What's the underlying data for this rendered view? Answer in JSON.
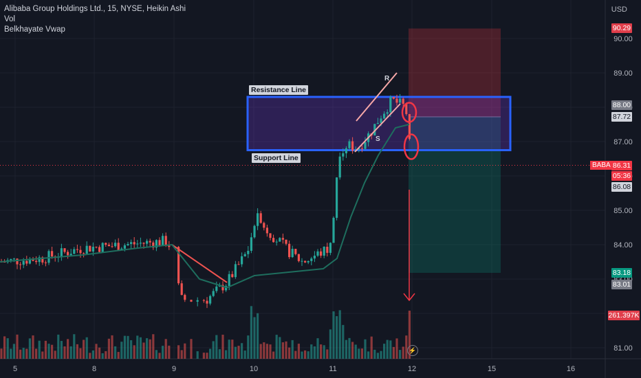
{
  "legend": {
    "line1": "Alibaba Group Holdings Ltd., 15, NYSE, Heikin Ashi",
    "line2": "Vol",
    "line3": "Belkhayate Vwap"
  },
  "axis": {
    "currency": "USD"
  },
  "annotations": {
    "resistance": "Resistance Line",
    "support": "Support Line",
    "r_label": "R",
    "s_label": "S"
  },
  "price_tags": {
    "stop": "90.29",
    "box_top": "88.00",
    "entry": "87.72",
    "symbol": "BABA",
    "last": "86.31",
    "countdown": "05:36",
    "low": "86.08",
    "target": "83.18",
    "target2": "83.01",
    "volume": "261.397K"
  },
  "icons": {
    "flash": "lightning-icon"
  },
  "colors": {
    "up": "#26a69a",
    "down": "#ef5350",
    "box": "#2962ff",
    "vwap": "#1e6e5e"
  },
  "chart_data": {
    "type": "candlestick",
    "symbol": "BABA",
    "interval": "15",
    "chart_style": "Heikin Ashi",
    "y_range": [
      80.7,
      90.5
    ],
    "y_ticks": [
      "90.00",
      "89.00",
      "88.00",
      "87.00",
      "86.00",
      "85.00",
      "84.00",
      "83.00",
      "82.00",
      "81.00"
    ],
    "x_ticks": [
      "5",
      "8",
      "9",
      "10",
      "11",
      "12",
      "15",
      "16"
    ],
    "grid": true,
    "last_price": 86.31,
    "resistance_line": 88.3,
    "support_line": 86.75,
    "position": {
      "side": "short",
      "entry": 87.72,
      "stop": 90.29,
      "target": 83.18
    },
    "vwap_series": [
      {
        "x": "5",
        "y": 83.5
      },
      {
        "x": "8",
        "y": 83.7
      },
      {
        "x": "9",
        "y": 84.0
      },
      {
        "x": "10",
        "y": 82.6
      },
      {
        "x": "11",
        "y": 83.2
      },
      {
        "x": "11.5",
        "y": 86.2
      },
      {
        "x": "12",
        "y": 87.4
      }
    ]
  }
}
